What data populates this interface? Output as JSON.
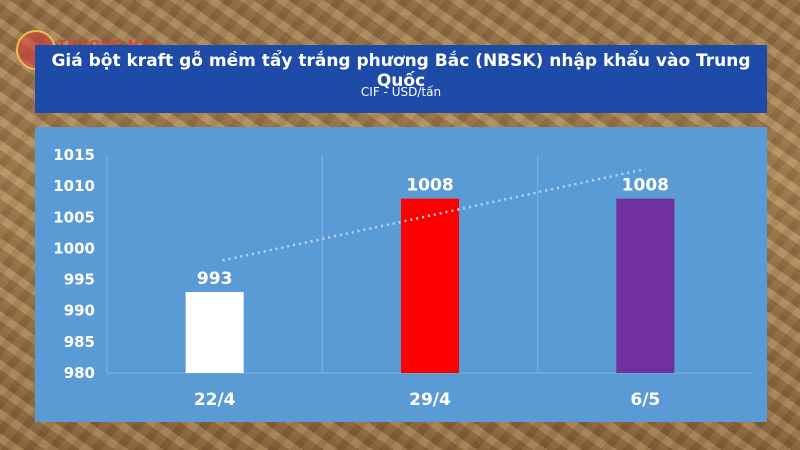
{
  "header": {
    "logo_text": "THƯƠNG MẠI",
    "title": "Giá bột kraft gỗ mềm tẩy trắng phương Bắc (NBSK) nhập khẩu vào Trung Quốc",
    "subtitle": "CIF - USD/tấn"
  },
  "chart_data": {
    "type": "bar",
    "title": "Giá bột kraft gỗ mềm tẩy trắng phương Bắc (NBSK) nhập khẩu vào Trung Quốc",
    "subtitle": "CIF - USD/tấn",
    "categories": [
      "22/4",
      "29/4",
      "6/5"
    ],
    "values": [
      993,
      1008,
      1008
    ],
    "bar_colors": [
      "#ffffff",
      "#ff0000",
      "#7030a0"
    ],
    "ylim": [
      980,
      1015
    ],
    "yticks": [
      980,
      985,
      990,
      995,
      1000,
      1005,
      1010,
      1015
    ],
    "grid": "vertical-separators",
    "trendline": "dotted-linear",
    "xlabel": "",
    "ylabel": ""
  }
}
